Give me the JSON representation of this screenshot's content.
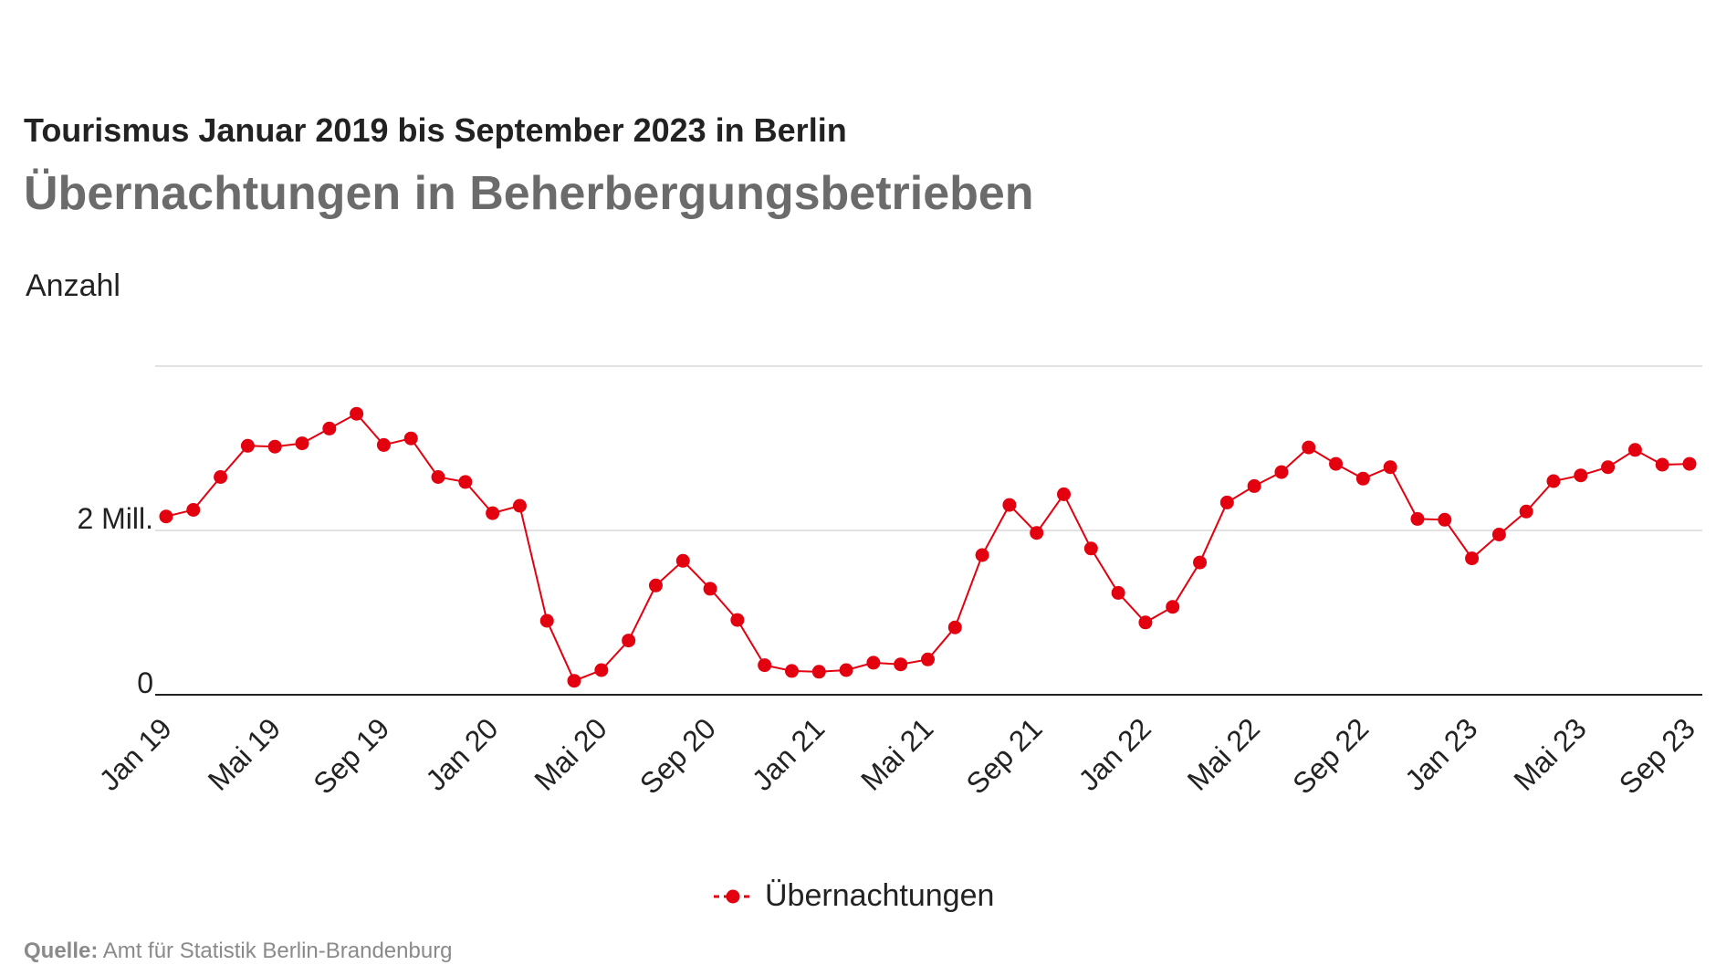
{
  "header": {
    "title": "Tourismus Januar 2019 bis September 2023 in Berlin",
    "subtitle": "Übernachtungen in Beherbergungsbetrieben"
  },
  "axis": {
    "unit_label": "Anzahl"
  },
  "legend": {
    "label": "Übernachtungen"
  },
  "footer": {
    "source_label": "Quelle:",
    "source_text": " Amt für Statistik Berlin-Brandenburg"
  },
  "colors": {
    "series": "#e3000f",
    "grid": "#d9d9d9",
    "baseline": "#222222"
  },
  "chart_data": {
    "type": "line",
    "title": "Tourismus Januar 2019 bis September 2023 in Berlin",
    "subtitle": "Übernachtungen in Beherbergungsbetrieben",
    "ylabel": "Anzahl",
    "ylim": [
      0,
      4000000
    ],
    "yticks": [
      {
        "value": 0,
        "label": "0"
      },
      {
        "value": 2000000,
        "label": "2 Mill."
      }
    ],
    "xticks": [
      {
        "index": 0,
        "label": "Jan 19"
      },
      {
        "index": 4,
        "label": "Mai 19"
      },
      {
        "index": 8,
        "label": "Sep 19"
      },
      {
        "index": 12,
        "label": "Jan 20"
      },
      {
        "index": 16,
        "label": "Mai 20"
      },
      {
        "index": 20,
        "label": "Sep 20"
      },
      {
        "index": 24,
        "label": "Jan 21"
      },
      {
        "index": 28,
        "label": "Mai 21"
      },
      {
        "index": 32,
        "label": "Sep 21"
      },
      {
        "index": 36,
        "label": "Jan 22"
      },
      {
        "index": 40,
        "label": "Mai 22"
      },
      {
        "index": 44,
        "label": "Sep 22"
      },
      {
        "index": 48,
        "label": "Jan 23"
      },
      {
        "index": 52,
        "label": "Mai 23"
      },
      {
        "index": 56,
        "label": "Sep 23"
      }
    ],
    "grid": true,
    "legend_position": "bottom",
    "series": [
      {
        "name": "Übernachtungen",
        "values": [
          2170000,
          2250000,
          2650000,
          3030000,
          3020000,
          3060000,
          3240000,
          3420000,
          3040000,
          3120000,
          2650000,
          2590000,
          2210000,
          2300000,
          900000,
          170000,
          300000,
          660000,
          1330000,
          1630000,
          1290000,
          910000,
          360000,
          290000,
          280000,
          300000,
          390000,
          370000,
          430000,
          820000,
          1700000,
          2310000,
          1970000,
          2440000,
          1780000,
          1240000,
          880000,
          1070000,
          1610000,
          2340000,
          2540000,
          2710000,
          3010000,
          2810000,
          2630000,
          2770000,
          2140000,
          2130000,
          1660000,
          1950000,
          2230000,
          2600000,
          2670000,
          2770000,
          2980000,
          2800000,
          2810000
        ]
      }
    ]
  }
}
